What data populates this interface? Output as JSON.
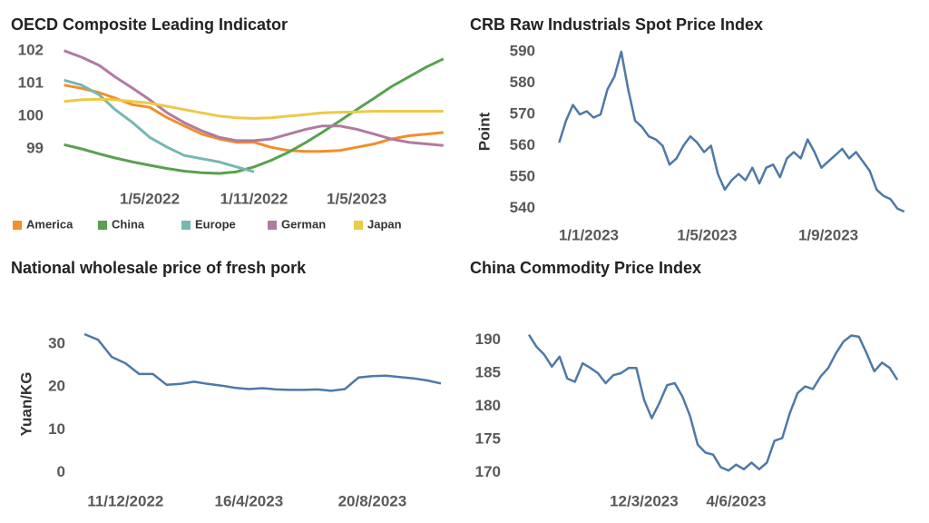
{
  "chart_data": [
    {
      "type": "line",
      "title": "OECD Composite Leading Indicator",
      "x": [
        "1/12/2021",
        "1/1/2022",
        "1/2/2022",
        "1/3/2022",
        "1/4/2022",
        "1/5/2022",
        "1/6/2022",
        "1/7/2022",
        "1/8/2022",
        "1/9/2022",
        "1/10/2022",
        "1/11/2022",
        "1/12/2022",
        "1/1/2023",
        "1/2/2023",
        "1/3/2023",
        "1/4/2023",
        "1/5/2023",
        "1/6/2023",
        "1/7/2023",
        "1/8/2023",
        "1/9/2023",
        "1/10/2023"
      ],
      "series": [
        {
          "name": "America",
          "color": "#f28e2b",
          "values": [
            100.95,
            100.85,
            100.72,
            100.55,
            100.35,
            100.27,
            99.95,
            99.7,
            99.45,
            99.3,
            99.2,
            99.2,
            99.05,
            98.95,
            98.92,
            98.92,
            98.95,
            99.05,
            99.15,
            99.3,
            99.4,
            99.45,
            99.5
          ]
        },
        {
          "name": "China",
          "color": "#59a14f",
          "values": [
            99.13,
            99.0,
            98.85,
            98.72,
            98.6,
            98.5,
            98.4,
            98.32,
            98.27,
            98.25,
            98.3,
            98.45,
            98.65,
            98.9,
            99.2,
            99.5,
            99.85,
            100.2,
            100.55,
            100.9,
            101.2,
            101.5,
            101.75
          ]
        },
        {
          "name": "Europe",
          "color": "#76b7b2",
          "values": [
            101.1,
            100.95,
            100.65,
            100.2,
            99.8,
            99.35,
            99.05,
            98.8,
            98.7,
            98.6,
            98.45,
            98.3,
            null,
            null,
            null,
            null,
            null,
            null,
            null,
            null,
            null,
            null,
            null
          ]
        },
        {
          "name": "German",
          "color": "#b07aa1",
          "values": [
            102.0,
            101.8,
            101.55,
            101.2,
            100.85,
            100.5,
            100.1,
            99.8,
            99.55,
            99.35,
            99.25,
            99.25,
            99.3,
            99.45,
            99.6,
            99.7,
            99.7,
            99.6,
            99.45,
            99.3,
            99.2,
            99.15,
            99.1
          ]
        },
        {
          "name": "Japan",
          "color": "#edc948",
          "values": [
            100.45,
            100.5,
            100.52,
            100.5,
            100.45,
            100.4,
            100.3,
            100.2,
            100.1,
            100.0,
            99.95,
            99.93,
            99.95,
            100.0,
            100.05,
            100.1,
            100.12,
            100.13,
            100.15,
            100.15,
            100.15,
            100.15,
            100.15
          ]
        }
      ],
      "xlim": [
        "14/11/2021",
        "19/10/2023"
      ],
      "xticks": [
        "1/5/2022",
        "1/11/2022",
        "1/5/2023"
      ],
      "ylim": [
        98,
        102.3
      ],
      "yticks": [
        99,
        100,
        101,
        102
      ],
      "legend": "bottom"
    },
    {
      "type": "line",
      "title": "CRB Raw Industrials Spot Price Index",
      "ylabel": "Point",
      "color": "#4e79a7",
      "x": [
        "2/12/2022",
        "9/12/2022",
        "16/12/2022",
        "23/12/2022",
        "30/12/2022",
        "6/1/2023",
        "13/1/2023",
        "20/1/2023",
        "27/1/2023",
        "3/2/2023",
        "10/2/2023",
        "17/2/2023",
        "24/2/2023",
        "3/3/2023",
        "10/3/2023",
        "17/3/2023",
        "24/3/2023",
        "31/3/2023",
        "7/4/2023",
        "14/4/2023",
        "21/4/2023",
        "28/4/2023",
        "5/5/2023",
        "12/5/2023",
        "19/5/2023",
        "26/5/2023",
        "2/6/2023",
        "9/6/2023",
        "16/6/2023",
        "23/6/2023",
        "30/6/2023",
        "7/7/2023",
        "14/7/2023",
        "21/7/2023",
        "28/7/2023",
        "4/8/2023",
        "11/8/2023",
        "18/8/2023",
        "25/8/2023",
        "1/9/2023",
        "8/9/2023",
        "15/9/2023",
        "22/9/2023",
        "29/9/2023",
        "6/10/2023",
        "13/10/2023",
        "20/10/2023",
        "27/10/2023",
        "3/11/2023",
        "10/11/2023",
        "17/11/2023"
      ],
      "values": [
        561,
        568,
        573,
        570,
        571,
        569,
        570,
        578,
        582,
        590,
        578,
        568,
        566,
        563,
        562,
        560,
        554,
        556,
        560,
        563,
        561,
        558,
        560,
        551,
        546,
        549,
        551,
        549,
        553,
        548,
        553,
        554,
        550,
        556,
        558,
        556,
        562,
        558,
        553,
        555,
        557,
        559,
        556,
        558,
        555,
        552,
        546,
        544,
        543,
        540,
        539
      ],
      "xlim": [
        "17/11/2022",
        "20/11/2023"
      ],
      "xticks": [
        "1/1/2023",
        "1/5/2023",
        "1/9/2023"
      ],
      "ylim": [
        537,
        592
      ],
      "yticks": [
        540,
        550,
        560,
        570,
        580,
        590
      ]
    },
    {
      "type": "line",
      "title": "National wholesale price of fresh pork",
      "ylabel": "Yuan/KG",
      "color": "#4e79a7",
      "x": [
        "30/10/2022",
        "13/11/2022",
        "27/11/2022",
        "11/12/2022",
        "25/12/2022",
        "8/1/2023",
        "22/1/2023",
        "5/2/2023",
        "19/2/2023",
        "5/3/2023",
        "19/3/2023",
        "2/4/2023",
        "16/4/2023",
        "30/4/2023",
        "14/5/2023",
        "28/5/2023",
        "11/6/2023",
        "25/6/2023",
        "9/7/2023",
        "23/7/2023",
        "6/8/2023",
        "20/8/2023",
        "3/9/2023",
        "17/9/2023",
        "1/10/2023",
        "15/10/2023",
        "29/10/2023"
      ],
      "values": [
        32.3,
        31.0,
        27.0,
        25.5,
        23.0,
        23.0,
        20.5,
        20.7,
        21.2,
        20.7,
        20.3,
        19.8,
        19.5,
        19.7,
        19.4,
        19.3,
        19.3,
        19.4,
        19.1,
        19.5,
        22.2,
        22.5,
        22.6,
        22.3,
        22.0,
        21.5,
        20.8
      ],
      "xlim": [
        "18/10/2022",
        "11/11/2023"
      ],
      "xticks": [
        "11/12/2022",
        "16/4/2023",
        "20/8/2023"
      ],
      "ylim": [
        -2,
        34
      ],
      "yticks": [
        0,
        10,
        20,
        30
      ]
    },
    {
      "type": "line",
      "title": "China Commodity Price Index",
      "color": "#4e79a7",
      "x": [
        "27/11/2022",
        "4/12/2022",
        "11/12/2022",
        "18/12/2022",
        "25/12/2022",
        "1/1/2023",
        "8/1/2023",
        "15/1/2023",
        "22/1/2023",
        "29/1/2023",
        "5/2/2023",
        "12/2/2023",
        "19/2/2023",
        "26/2/2023",
        "5/3/2023",
        "12/3/2023",
        "19/3/2023",
        "26/3/2023",
        "2/4/2023",
        "9/4/2023",
        "16/4/2023",
        "23/4/2023",
        "30/4/2023",
        "7/5/2023",
        "14/5/2023",
        "21/5/2023",
        "28/5/2023",
        "4/6/2023",
        "11/6/2023",
        "18/6/2023",
        "25/6/2023",
        "2/7/2023",
        "9/7/2023",
        "16/7/2023",
        "23/7/2023",
        "30/7/2023",
        "6/8/2023",
        "13/8/2023",
        "20/8/2023",
        "27/8/2023",
        "3/9/2023",
        "10/9/2023",
        "17/9/2023",
        "24/9/2023",
        "1/10/2023",
        "8/10/2023",
        "15/10/2023",
        "22/10/2023",
        "29/10/2023"
      ],
      "values": [
        190.8,
        189,
        187.8,
        186,
        187.5,
        184.2,
        183.7,
        186.5,
        185.8,
        185,
        183.5,
        184.7,
        185,
        185.8,
        185.8,
        181,
        178.2,
        180.5,
        183.2,
        183.5,
        181.5,
        178.5,
        174.2,
        173,
        172.7,
        170.8,
        170.3,
        171.2,
        170.5,
        171.5,
        170.5,
        171.5,
        174.8,
        175.2,
        179,
        182,
        183,
        182.6,
        184.5,
        185.8,
        188,
        189.8,
        190.7,
        190.5,
        188,
        185.3,
        186.6,
        185.8,
        184
      ],
      "xlim": [
        "8/11/2022",
        "7/11/2023"
      ],
      "xticks": [
        "12/3/2023",
        "4/6/2023"
      ],
      "ylim": [
        168,
        192
      ],
      "yticks": [
        170,
        175,
        180,
        185,
        190
      ]
    }
  ]
}
